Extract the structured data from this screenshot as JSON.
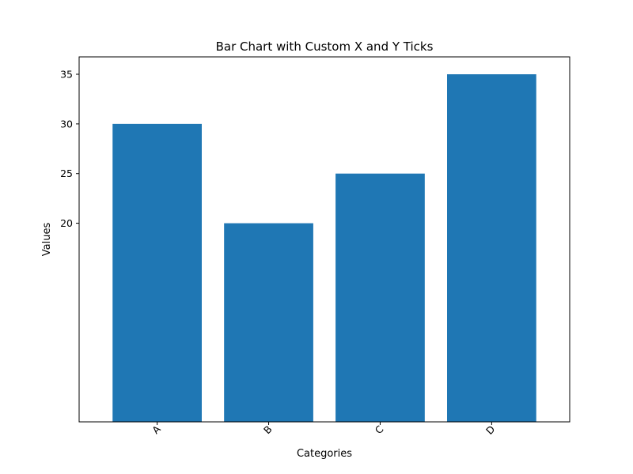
{
  "chart_data": {
    "type": "bar",
    "title": "Bar Chart with Custom X and Y Ticks",
    "xlabel": "Categories",
    "ylabel": "Values",
    "categories": [
      "A",
      "B",
      "C",
      "D"
    ],
    "values": [
      30,
      20,
      25,
      35
    ],
    "yticks": [
      20,
      25,
      30,
      35
    ],
    "ylim": [
      0,
      36.75
    ],
    "x_tick_rotation_deg": 45,
    "bar_color": "#1f77b4",
    "grid": false,
    "legend": "none"
  }
}
